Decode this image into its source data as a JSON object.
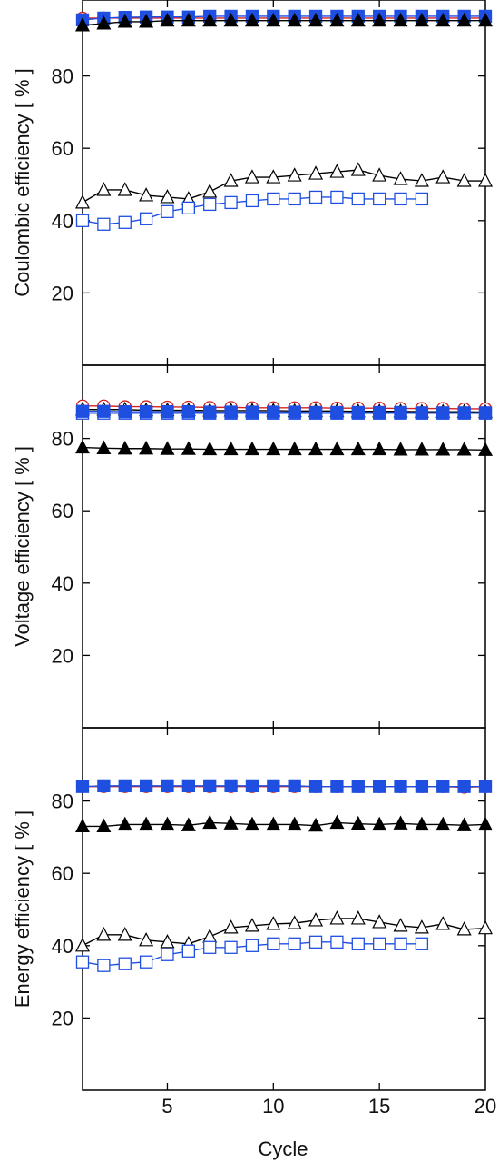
{
  "chart_data": [
    {
      "type": "line",
      "ylabel": "Coulombic efficiency [ % ]",
      "ylim": [
        0,
        100
      ],
      "yticks": [
        20,
        40,
        60,
        80
      ],
      "xlim": [
        1,
        20
      ],
      "series": [
        {
          "marker": "circle-open",
          "color": "#d42020",
          "x": [
            1,
            2,
            3,
            4,
            5,
            6,
            7,
            8,
            9,
            10,
            11,
            12,
            13,
            14,
            15,
            16,
            17,
            18,
            19,
            20
          ],
          "y": [
            96,
            96,
            96,
            96,
            96,
            96,
            96,
            96,
            96,
            96,
            96,
            96,
            96,
            96,
            96,
            96,
            96,
            96,
            96,
            96
          ]
        },
        {
          "marker": "square-filled",
          "color": "#1f4fe0",
          "x": [
            1,
            2,
            3,
            4,
            5,
            6,
            7,
            8,
            9,
            10,
            11,
            12,
            13,
            14,
            15,
            16,
            17,
            18,
            19,
            20
          ],
          "y": [
            95.5,
            96,
            96.2,
            96.3,
            96.3,
            96.3,
            96.5,
            96.5,
            96.5,
            96.5,
            96.5,
            96.5,
            96.5,
            96.5,
            96.5,
            96.5,
            96.5,
            96.5,
            96.5,
            96.5
          ]
        },
        {
          "marker": "triangle-filled",
          "color": "#000000",
          "x": [
            1,
            2,
            3,
            4,
            5,
            6,
            7,
            8,
            9,
            10,
            11,
            12,
            13,
            14,
            15,
            16,
            17,
            18,
            19,
            20
          ],
          "y": [
            94,
            94.5,
            95,
            95,
            95.3,
            95.3,
            95.3,
            95.3,
            95.3,
            95.3,
            95.3,
            95.3,
            95.3,
            95.3,
            95.3,
            95.3,
            95.3,
            95.3,
            95.3,
            95.3
          ]
        },
        {
          "marker": "triangle-open",
          "color": "#000000",
          "x": [
            1,
            2,
            3,
            4,
            5,
            6,
            7,
            8,
            9,
            10,
            11,
            12,
            13,
            14,
            15,
            16,
            17,
            18,
            19,
            20
          ],
          "y": [
            45,
            48.5,
            48.5,
            47,
            46.5,
            46,
            48,
            51,
            52,
            52,
            52.5,
            53,
            53.5,
            54,
            52.5,
            51.5,
            51,
            52,
            51,
            51
          ]
        },
        {
          "marker": "square-open",
          "color": "#1f4fe0",
          "x": [
            1,
            2,
            3,
            4,
            5,
            6,
            7,
            8,
            9,
            10,
            11,
            12,
            13,
            14,
            15,
            16,
            17
          ],
          "y": [
            40,
            39,
            39.5,
            40.5,
            42.5,
            43.5,
            44.5,
            45,
            45.5,
            46,
            46,
            46.5,
            46.5,
            46,
            46,
            46,
            46
          ]
        }
      ]
    },
    {
      "type": "line",
      "ylabel": "Voltage efficiency [ % ]",
      "ylim": [
        0,
        100
      ],
      "yticks": [
        20,
        40,
        60,
        80
      ],
      "xlim": [
        1,
        20
      ],
      "series": [
        {
          "marker": "circle-open",
          "color": "#d42020",
          "x": [
            1,
            2,
            3,
            4,
            5,
            6,
            7,
            8,
            9,
            10,
            11,
            12,
            13,
            14,
            15,
            16,
            17,
            18,
            19,
            20
          ],
          "y": [
            89,
            89,
            88.8,
            88.8,
            88.7,
            88.7,
            88.6,
            88.6,
            88.5,
            88.5,
            88.5,
            88.5,
            88.4,
            88.4,
            88.4,
            88.3,
            88.3,
            88.3,
            88.2,
            88.2
          ]
        },
        {
          "marker": "triangle-open",
          "color": "#000000",
          "x": [
            1,
            2,
            3,
            4,
            5,
            6,
            7,
            8,
            9,
            10,
            11,
            12,
            13,
            14,
            15,
            16,
            17,
            18,
            19,
            20
          ],
          "y": [
            88,
            88,
            88,
            87.8,
            87.8,
            87.8,
            87.7,
            87.7,
            87.7,
            87.7,
            87.6,
            87.6,
            87.6,
            87.5,
            87.5,
            87.5,
            87.4,
            87.4,
            87.4,
            87.3
          ]
        },
        {
          "marker": "square-open",
          "color": "#1f4fe0",
          "x": [
            1,
            2,
            3,
            4,
            5,
            6,
            7,
            8,
            9,
            10,
            11,
            12,
            13,
            14,
            15,
            16,
            17,
            18,
            19,
            20
          ],
          "y": [
            87,
            87,
            87,
            87,
            87,
            87,
            87,
            87,
            87,
            87,
            87,
            87,
            87,
            87,
            87,
            87,
            87,
            87,
            87,
            87
          ]
        },
        {
          "marker": "square-filled",
          "color": "#1f4fe0",
          "x": [
            1,
            2,
            3,
            4,
            5,
            6,
            7,
            8,
            9,
            10,
            11,
            12,
            13,
            14,
            15,
            16,
            17,
            18,
            19,
            20
          ],
          "y": [
            87.5,
            87.5,
            87.4,
            87.4,
            87.4,
            87.4,
            87.3,
            87.3,
            87.3,
            87.3,
            87.3,
            87.2,
            87.2,
            87.2,
            87.2,
            87.2,
            87.1,
            87.1,
            87.1,
            87.1
          ]
        },
        {
          "marker": "triangle-filled",
          "color": "#000000",
          "x": [
            1,
            2,
            3,
            4,
            5,
            6,
            7,
            8,
            9,
            10,
            11,
            12,
            13,
            14,
            15,
            16,
            17,
            18,
            19,
            20
          ],
          "y": [
            77.5,
            77.3,
            77.2,
            77.2,
            77.1,
            77.1,
            77,
            77,
            77,
            77,
            77,
            77,
            77,
            77,
            77,
            76.9,
            76.9,
            76.9,
            76.9,
            76.8
          ]
        }
      ]
    },
    {
      "type": "line",
      "ylabel": "Energy efficiency [ % ]",
      "xlabel": "Cycle",
      "ylim": [
        0,
        100
      ],
      "yticks": [
        20,
        40,
        60,
        80
      ],
      "xlim": [
        1,
        20
      ],
      "xticks": [
        5,
        10,
        15,
        20
      ],
      "series": [
        {
          "marker": "circle-open",
          "color": "#d42020",
          "x": [
            1,
            2,
            3,
            4,
            5,
            6,
            7,
            8,
            9,
            10,
            11,
            12,
            13,
            14,
            15,
            16,
            17,
            18,
            19,
            20
          ],
          "y": [
            84,
            84,
            84,
            84,
            84,
            84,
            84,
            84,
            84,
            84,
            84,
            84,
            84,
            84,
            84,
            84,
            84,
            84,
            83.8,
            84
          ]
        },
        {
          "marker": "square-filled",
          "color": "#1f4fe0",
          "x": [
            1,
            2,
            3,
            4,
            5,
            6,
            7,
            8,
            9,
            10,
            11,
            12,
            13,
            14,
            15,
            16,
            17,
            18,
            19,
            20
          ],
          "y": [
            84,
            84.2,
            84.2,
            84.2,
            84.2,
            84.2,
            84.2,
            84.2,
            84.2,
            84.2,
            84.2,
            84,
            84,
            84,
            84,
            84,
            84,
            84,
            84,
            84
          ]
        },
        {
          "marker": "triangle-filled",
          "color": "#000000",
          "x": [
            1,
            2,
            3,
            4,
            5,
            6,
            7,
            8,
            9,
            10,
            11,
            12,
            13,
            14,
            15,
            16,
            17,
            18,
            19,
            20
          ],
          "y": [
            73,
            73,
            73.5,
            73.5,
            73.5,
            73.3,
            74,
            73.8,
            73.5,
            73.5,
            73.5,
            73.2,
            74,
            73.7,
            73.5,
            73.8,
            73.5,
            73.5,
            73.3,
            73.5
          ]
        },
        {
          "marker": "triangle-open",
          "color": "#000000",
          "x": [
            1,
            2,
            3,
            4,
            5,
            6,
            7,
            8,
            9,
            10,
            11,
            12,
            13,
            14,
            15,
            16,
            17,
            18,
            19,
            20
          ],
          "y": [
            40,
            43,
            43,
            41.5,
            41,
            40.5,
            42.5,
            45,
            45.5,
            46,
            46.2,
            47,
            47.5,
            47.5,
            46.5,
            45.5,
            45,
            46,
            44.5,
            44.8
          ]
        },
        {
          "marker": "square-open",
          "color": "#1f4fe0",
          "x": [
            1,
            2,
            3,
            4,
            5,
            6,
            7,
            8,
            9,
            10,
            11,
            12,
            13,
            14,
            15,
            16,
            17
          ],
          "y": [
            35.5,
            34.5,
            35,
            35.5,
            37.5,
            38.5,
            39.5,
            39.5,
            40,
            40.5,
            40.5,
            41,
            41,
            40.5,
            40.5,
            40.5,
            40.5
          ]
        }
      ]
    }
  ]
}
